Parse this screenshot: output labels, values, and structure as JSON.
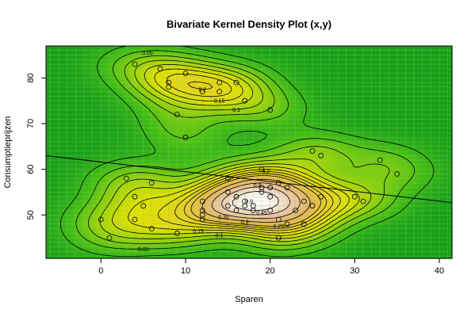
{
  "chart_data": {
    "type": "density_contour",
    "title": "Bivariate Kernel Density Plot (x,y)",
    "xlabel": "Sparen",
    "ylabel": "Consumptieprijzen",
    "xlim": [
      -6.5,
      41.5
    ],
    "ylim": [
      40.5,
      87
    ],
    "xticks": [
      0,
      10,
      20,
      30,
      40
    ],
    "yticks": [
      50,
      60,
      70,
      80
    ],
    "grid": true,
    "colors": {
      "low": "#1aa31a",
      "mid": "#e8e800",
      "high": "#ffffff",
      "grid": "#7fd07f",
      "line": "#000000"
    },
    "contour_labels": [
      {
        "text": "0.05",
        "x": 5.5,
        "y": 85.5
      },
      {
        "text": "0.2",
        "x": 12.0,
        "y": 77.5
      },
      {
        "text": "0.15",
        "x": 14.0,
        "y": 75.0
      },
      {
        "text": "0.1",
        "x": 16.0,
        "y": 73.0
      },
      {
        "text": "0.2",
        "x": 19.5,
        "y": 59.5
      },
      {
        "text": "0.5",
        "x": 18.5,
        "y": 56.5
      },
      {
        "text": "0.35",
        "x": 14.5,
        "y": 49.5
      },
      {
        "text": "0.45",
        "x": 19.0,
        "y": 50.5
      },
      {
        "text": "0.3",
        "x": 17.0,
        "y": 48.5
      },
      {
        "text": "0.25",
        "x": 21.0,
        "y": 47.5
      },
      {
        "text": "0.15",
        "x": 11.5,
        "y": 46.5
      },
      {
        "text": "0.1",
        "x": 14.0,
        "y": 45.5
      },
      {
        "text": "0.05",
        "x": 5.0,
        "y": 42.5
      },
      {
        "text": "0.9",
        "x": 17.5,
        "y": 53.0
      }
    ],
    "points": [
      {
        "x": 0,
        "y": 49
      },
      {
        "x": 1,
        "y": 45
      },
      {
        "x": 3,
        "y": 58
      },
      {
        "x": 4,
        "y": 54
      },
      {
        "x": 4,
        "y": 49
      },
      {
        "x": 5,
        "y": 52
      },
      {
        "x": 6,
        "y": 57
      },
      {
        "x": 6,
        "y": 47
      },
      {
        "x": 9,
        "y": 46
      },
      {
        "x": 12,
        "y": 53
      },
      {
        "x": 12,
        "y": 51
      },
      {
        "x": 12,
        "y": 50
      },
      {
        "x": 12,
        "y": 49
      },
      {
        "x": 15,
        "y": 58
      },
      {
        "x": 15,
        "y": 55
      },
      {
        "x": 15,
        "y": 52
      },
      {
        "x": 16,
        "y": 54
      },
      {
        "x": 16,
        "y": 51
      },
      {
        "x": 17,
        "y": 53
      },
      {
        "x": 17,
        "y": 52
      },
      {
        "x": 18,
        "y": 52
      },
      {
        "x": 18,
        "y": 51
      },
      {
        "x": 19,
        "y": 60
      },
      {
        "x": 19,
        "y": 56
      },
      {
        "x": 19,
        "y": 55
      },
      {
        "x": 20,
        "y": 56
      },
      {
        "x": 20,
        "y": 54
      },
      {
        "x": 20,
        "y": 51
      },
      {
        "x": 21,
        "y": 57
      },
      {
        "x": 21,
        "y": 49
      },
      {
        "x": 21,
        "y": 45
      },
      {
        "x": 22,
        "y": 56
      },
      {
        "x": 22,
        "y": 48
      },
      {
        "x": 23,
        "y": 51
      },
      {
        "x": 24,
        "y": 53
      },
      {
        "x": 24,
        "y": 48
      },
      {
        "x": 25,
        "y": 64
      },
      {
        "x": 25,
        "y": 52
      },
      {
        "x": 26,
        "y": 63
      },
      {
        "x": 26,
        "y": 54
      },
      {
        "x": 30,
        "y": 54
      },
      {
        "x": 31,
        "y": 53
      },
      {
        "x": 33,
        "y": 62
      },
      {
        "x": 35,
        "y": 59
      },
      {
        "x": 4,
        "y": 83
      },
      {
        "x": 7,
        "y": 82
      },
      {
        "x": 8,
        "y": 79
      },
      {
        "x": 8,
        "y": 78
      },
      {
        "x": 9,
        "y": 72
      },
      {
        "x": 10,
        "y": 81
      },
      {
        "x": 10,
        "y": 67
      },
      {
        "x": 12,
        "y": 77
      },
      {
        "x": 14,
        "y": 79
      },
      {
        "x": 14,
        "y": 77
      },
      {
        "x": 16,
        "y": 79
      },
      {
        "x": 17,
        "y": 75
      },
      {
        "x": 20,
        "y": 73
      }
    ],
    "regression_line": {
      "x": [
        -6.5,
        41.5
      ],
      "y": [
        63.0,
        52.7
      ]
    }
  }
}
